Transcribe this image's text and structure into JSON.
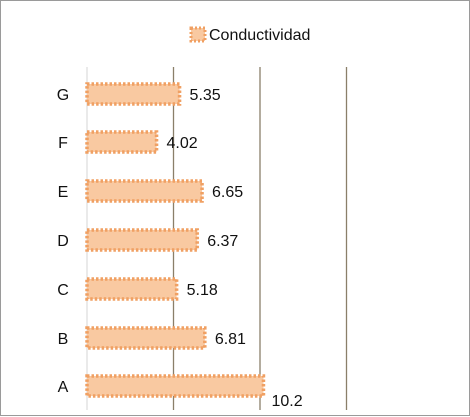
{
  "chart_data": {
    "type": "bar",
    "orientation": "horizontal",
    "legend": {
      "position": "top",
      "entries": [
        "Conductividad"
      ]
    },
    "categories": [
      "A",
      "B",
      "C",
      "D",
      "E",
      "F",
      "G"
    ],
    "series": [
      {
        "name": "Conductividad",
        "values": [
          10.2,
          6.81,
          5.18,
          6.37,
          6.65,
          4.02,
          5.35
        ]
      }
    ],
    "value_labels": [
      "10.2",
      "6.81",
      "5.18",
      "6.37",
      "6.65",
      "4.02",
      "5.35"
    ],
    "xlim": [
      0,
      15
    ],
    "grid": "vertical",
    "colors": {
      "bar_fill": "#f9c9a1",
      "bar_border": "#f0a063",
      "gridline": "#8a7f6a"
    }
  }
}
